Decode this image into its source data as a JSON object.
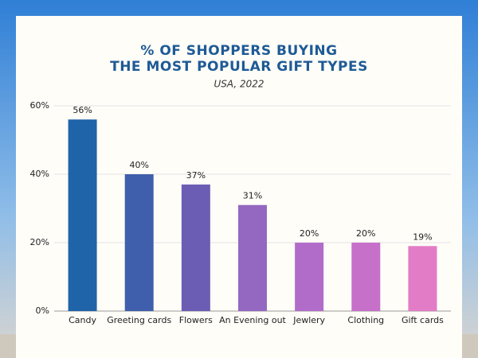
{
  "chart_data": {
    "type": "bar",
    "title_lines": [
      "% OF SHOPPERS BUYING",
      "THE MOST POPULAR GIFT TYPES"
    ],
    "subtitle": "USA, 2022",
    "categories": [
      "Candy",
      "Greeting cards",
      "Flowers",
      "An Evening out",
      "Jewlery",
      "Clothing",
      "Gift cards"
    ],
    "values": [
      56,
      40,
      37,
      31,
      20,
      20,
      19
    ],
    "value_labels": [
      "56%",
      "40%",
      "37%",
      "31%",
      "20%",
      "20%",
      "19%"
    ],
    "colors": [
      "#1f64a9",
      "#3f5fac",
      "#6b5db4",
      "#9467c0",
      "#b16cc9",
      "#c670c9",
      "#e27cc6"
    ],
    "ylim": [
      0,
      60
    ],
    "yticks": [
      {
        "value": 0,
        "label": "0%"
      },
      {
        "value": 20,
        "label": "20%"
      },
      {
        "value": 40,
        "label": "40%"
      },
      {
        "value": 60,
        "label": "60%"
      }
    ],
    "grid": true
  }
}
